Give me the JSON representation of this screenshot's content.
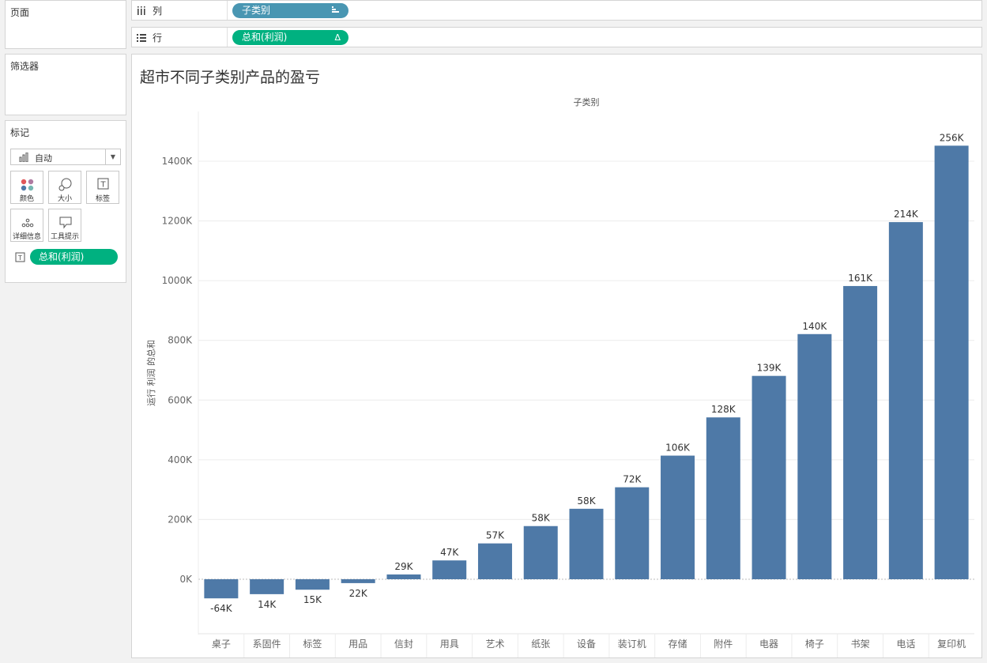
{
  "left": {
    "pages_title": "页面",
    "filters_title": "筛选器",
    "marks_title": "标记",
    "mark_type": "自动",
    "buttons": [
      {
        "label": "颜色",
        "icon": "color-dots-icon"
      },
      {
        "label": "大小",
        "icon": "size-icon"
      },
      {
        "label": "标签",
        "icon": "label-icon"
      },
      {
        "label": "详细信息",
        "icon": "detail-icon"
      },
      {
        "label": "工具提示",
        "icon": "tooltip-icon"
      }
    ],
    "label_field": "总和(利润)"
  },
  "shelves": {
    "columns_label": "列",
    "columns_pill": "子类别",
    "rows_label": "行",
    "rows_pill": "总和(利润)"
  },
  "colors": {
    "bar": "#4e79a7",
    "pill_blue": "#4996b2",
    "pill_green": "#00b180"
  },
  "chart_data": {
    "type": "bar",
    "title": "超市不同子类别产品的盈亏",
    "xlabel": "子类别",
    "ylabel": "运行 利润 的总和",
    "categories": [
      "桌子",
      "系固件",
      "标签",
      "用品",
      "信封",
      "用具",
      "艺术",
      "纸张",
      "设备",
      "装订机",
      "存储",
      "附件",
      "电器",
      "椅子",
      "书架",
      "电话",
      "复印机"
    ],
    "values": [
      -64,
      -50,
      -35,
      -13,
      16,
      63,
      120,
      178,
      236,
      308,
      414,
      542,
      681,
      821,
      982,
      1196,
      1452
    ],
    "data_labels": [
      "-64K",
      "14K",
      "15K",
      "22K",
      "29K",
      "47K",
      "57K",
      "58K",
      "58K",
      "72K",
      "106K",
      "128K",
      "139K",
      "140K",
      "161K",
      "214K",
      "256K"
    ],
    "y_ticks": [
      0,
      200,
      400,
      600,
      800,
      1000,
      1200,
      1400
    ],
    "y_tick_labels": [
      "0K",
      "200K",
      "400K",
      "600K",
      "800K",
      "1000K",
      "1200K",
      "1400K"
    ],
    "ylim": [
      -185,
      1580
    ],
    "grid": true
  }
}
